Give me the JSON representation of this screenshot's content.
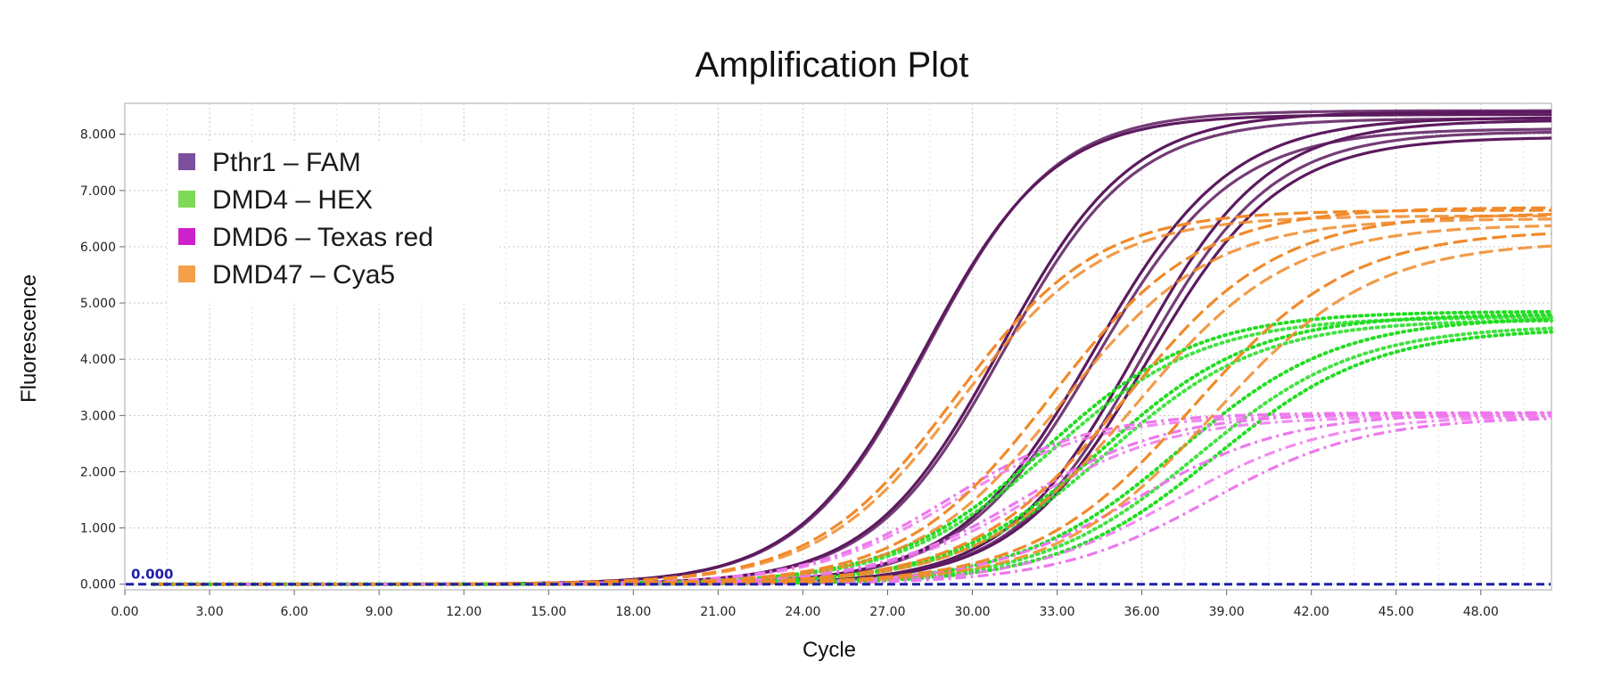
{
  "chart_data": {
    "type": "line",
    "title": "Amplification Plot",
    "xlabel": "Cycle",
    "ylabel": "Fluorescence",
    "xlim": [
      0,
      50.5
    ],
    "ylim": [
      -0.1,
      8.55
    ],
    "xticks": [
      "0.00",
      "3.00",
      "6.00",
      "9.00",
      "12.00",
      "15.00",
      "18.00",
      "21.00",
      "24.00",
      "27.00",
      "30.00",
      "33.00",
      "36.00",
      "39.00",
      "42.00",
      "45.00",
      "48.00"
    ],
    "yticks": [
      "0.000",
      "1.000",
      "2.000",
      "3.000",
      "4.000",
      "5.000",
      "6.000",
      "7.000",
      "8.000"
    ],
    "grid": true,
    "legend_position": "top-left",
    "threshold": {
      "value": 0.0,
      "label": "0.000",
      "color": "#1f1fa8"
    },
    "series": [
      {
        "name": "Pthr1 – FAM",
        "color": "#5c1a5e",
        "legend_color": "#7b4f9e",
        "dash": "solid",
        "curves": [
          {
            "ct": 28.3,
            "plateau": 8.35,
            "slope": 2.25
          },
          {
            "ct": 28.4,
            "plateau": 8.42,
            "slope": 2.25
          },
          {
            "ct": 31.0,
            "plateau": 8.4,
            "slope": 2.3
          },
          {
            "ct": 31.1,
            "plateau": 8.28,
            "slope": 2.3
          },
          {
            "ct": 34.3,
            "plateau": 8.3,
            "slope": 2.4
          },
          {
            "ct": 34.4,
            "plateau": 8.1,
            "slope": 2.4
          },
          {
            "ct": 35.8,
            "plateau": 8.25,
            "slope": 2.3
          },
          {
            "ct": 36.0,
            "plateau": 8.05,
            "slope": 2.3
          },
          {
            "ct": 36.2,
            "plateau": 7.95,
            "slope": 2.35
          }
        ]
      },
      {
        "name": "DMD4 – HEX",
        "color": "#22dd22",
        "legend_color": "#7ed957",
        "dash": "dotted",
        "curves": [
          {
            "ct": 32.6,
            "plateau": 4.85,
            "slope": 2.7
          },
          {
            "ct": 32.8,
            "plateau": 4.75,
            "slope": 2.7
          },
          {
            "ct": 34.6,
            "plateau": 4.8,
            "slope": 2.7
          },
          {
            "ct": 34.8,
            "plateau": 4.7,
            "slope": 2.7
          },
          {
            "ct": 37.3,
            "plateau": 4.75,
            "slope": 2.8
          },
          {
            "ct": 38.0,
            "plateau": 4.6,
            "slope": 2.8
          },
          {
            "ct": 38.6,
            "plateau": 4.55,
            "slope": 2.8
          }
        ]
      },
      {
        "name": "DMD6 – Texas red",
        "color": "#ee77ee",
        "legend_color": "#cc22cc",
        "dash": "dashdot",
        "curves": [
          {
            "ct": 29.2,
            "plateau": 3.05,
            "slope": 2.5
          },
          {
            "ct": 29.4,
            "plateau": 3.0,
            "slope": 2.5
          },
          {
            "ct": 31.8,
            "plateau": 3.05,
            "slope": 2.6
          },
          {
            "ct": 32.0,
            "plateau": 2.98,
            "slope": 2.6
          },
          {
            "ct": 35.8,
            "plateau": 3.05,
            "slope": 2.7
          },
          {
            "ct": 37.2,
            "plateau": 3.0,
            "slope": 2.7
          },
          {
            "ct": 38.4,
            "plateau": 2.98,
            "slope": 2.75
          }
        ]
      },
      {
        "name": "DMD47 – Cya5",
        "color": "#f08a2a",
        "legend_color": "#f4a04a",
        "dash": "dashed",
        "curves": [
          {
            "ct": 29.4,
            "plateau": 6.65,
            "slope": 2.5
          },
          {
            "ct": 29.6,
            "plateau": 6.55,
            "slope": 2.5
          },
          {
            "ct": 32.8,
            "plateau": 6.7,
            "slope": 2.6
          },
          {
            "ct": 33.2,
            "plateau": 6.5,
            "slope": 2.6
          },
          {
            "ct": 35.4,
            "plateau": 6.6,
            "slope": 2.7
          },
          {
            "ct": 35.8,
            "plateau": 6.4,
            "slope": 2.7
          },
          {
            "ct": 37.8,
            "plateau": 6.3,
            "slope": 2.8
          },
          {
            "ct": 38.6,
            "plateau": 6.1,
            "slope": 2.8
          }
        ]
      }
    ]
  }
}
